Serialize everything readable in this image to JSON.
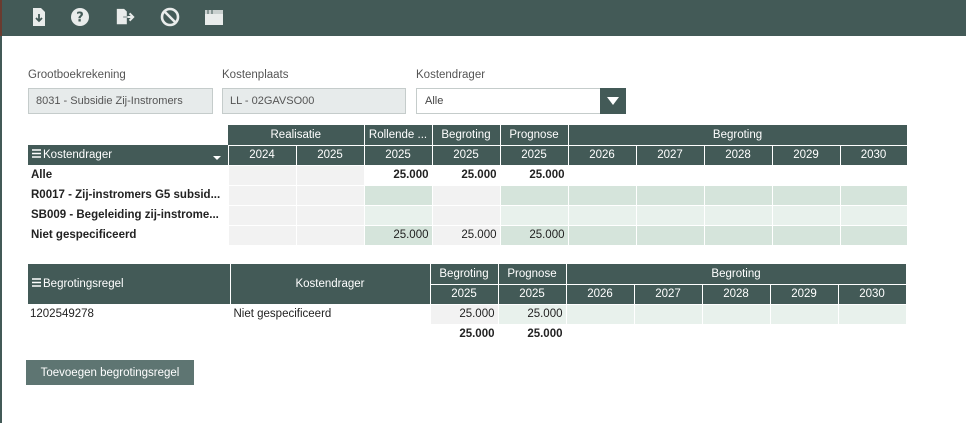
{
  "toolbar": {
    "icons": [
      "download-icon",
      "help-icon",
      "export-icon",
      "cancel-icon",
      "window-icon"
    ]
  },
  "fields": {
    "grootboek": {
      "label": "Grootboekrekening",
      "value": "8031 - Subsidie Zij-Instromers"
    },
    "kostenplaats": {
      "label": "Kostenplaats",
      "value": "LL - 02GAVSO00"
    },
    "kostendrager": {
      "label": "Kostendrager",
      "value": "Alle"
    }
  },
  "table1": {
    "groups": {
      "realisatie": "Realisatie",
      "rollende": "Rollende ...",
      "begroting": "Begroting",
      "prognose": "Prognose",
      "begroting_future": "Begroting"
    },
    "column_label": "Kostendrager",
    "years": [
      "2024",
      "2025",
      "2025",
      "2025",
      "2025",
      "2026",
      "2027",
      "2028",
      "2029",
      "2030"
    ],
    "rows": [
      {
        "label": "Alle",
        "values": [
          "",
          "",
          "25.000",
          "25.000",
          "25.000",
          "",
          "",
          "",
          "",
          ""
        ]
      },
      {
        "label": "R0017 - Zij-instromers G5 subsid...",
        "values": [
          "",
          "",
          "",
          "",
          "",
          "",
          "",
          "",
          "",
          ""
        ]
      },
      {
        "label": "SB009 - Begeleiding zij-instrome...",
        "values": [
          "",
          "",
          "",
          "",
          "",
          "",
          "",
          "",
          "",
          ""
        ]
      },
      {
        "label": "Niet gespecificeerd",
        "values": [
          "",
          "",
          "25.000",
          "25.000",
          "25.000",
          "",
          "",
          "",
          "",
          ""
        ]
      }
    ]
  },
  "table2": {
    "col_regel": "Begrotingsregel",
    "col_kostendrager": "Kostendrager",
    "groups": {
      "begroting": "Begroting",
      "prognose": "Prognose",
      "begroting_future": "Begroting"
    },
    "years": [
      "2025",
      "2025",
      "2026",
      "2027",
      "2028",
      "2029",
      "2030"
    ],
    "rows": [
      {
        "regel": "1202549278",
        "kostendrager": "Niet gespecificeerd",
        "values": [
          "25.000",
          "25.000",
          "",
          "",
          "",
          "",
          ""
        ]
      }
    ],
    "totals": [
      "25.000",
      "25.000"
    ]
  },
  "actions": {
    "add_label": "Toevoegen begrotingsregel"
  }
}
